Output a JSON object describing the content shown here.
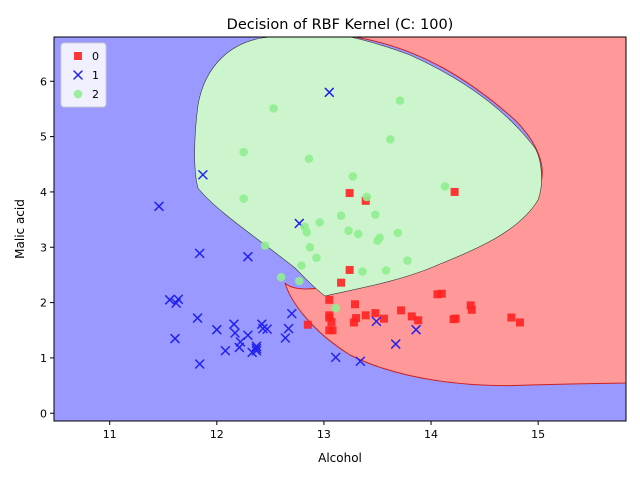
{
  "chart_data": {
    "type": "scatter",
    "title": "Decision of RBF Kernel (C: 100)",
    "xlabel": "Alcohol",
    "ylabel": "Malic acid",
    "xlim": [
      10.48,
      15.82
    ],
    "ylim": [
      -0.14,
      6.8
    ],
    "xticks": [
      11,
      12,
      13,
      14,
      15
    ],
    "yticks": [
      0,
      1,
      2,
      3,
      4,
      5,
      6
    ],
    "grid": false,
    "legend_position": "top-left",
    "regions": [
      {
        "class": "0",
        "color": "#ff9999"
      },
      {
        "class": "1",
        "color": "#9999ff"
      },
      {
        "class": "2",
        "color": "#cdf5cd"
      }
    ],
    "series": [
      {
        "name": "0",
        "marker": "square",
        "color": "#ff2222",
        "points": [
          [
            13.24,
            3.98
          ],
          [
            13.39,
            3.84
          ],
          [
            14.22,
            4.0
          ],
          [
            13.24,
            2.59
          ],
          [
            13.16,
            2.36
          ],
          [
            13.05,
            2.05
          ],
          [
            12.85,
            1.6
          ],
          [
            13.05,
            1.77
          ],
          [
            13.05,
            1.73
          ],
          [
            13.07,
            1.65
          ],
          [
            13.05,
            1.5
          ],
          [
            13.08,
            1.5
          ],
          [
            13.28,
            1.64
          ],
          [
            13.29,
            1.97
          ],
          [
            13.3,
            1.72
          ],
          [
            13.39,
            1.77
          ],
          [
            13.48,
            1.81
          ],
          [
            13.56,
            1.71
          ],
          [
            13.72,
            1.86
          ],
          [
            13.82,
            1.75
          ],
          [
            13.88,
            1.68
          ],
          [
            14.06,
            2.15
          ],
          [
            14.1,
            2.16
          ],
          [
            14.21,
            1.7
          ],
          [
            14.23,
            1.71
          ],
          [
            14.37,
            1.95
          ],
          [
            14.38,
            1.87
          ],
          [
            14.75,
            1.73
          ],
          [
            14.83,
            1.64
          ]
        ]
      },
      {
        "name": "1",
        "marker": "x",
        "color": "#2222ee",
        "points": [
          [
            11.46,
            3.74
          ],
          [
            11.56,
            2.05
          ],
          [
            11.61,
            1.35
          ],
          [
            11.62,
            1.99
          ],
          [
            11.64,
            2.06
          ],
          [
            11.82,
            1.72
          ],
          [
            11.84,
            0.89
          ],
          [
            11.84,
            2.89
          ],
          [
            11.87,
            4.31
          ],
          [
            12.0,
            1.51
          ],
          [
            12.08,
            1.13
          ],
          [
            12.16,
            1.61
          ],
          [
            12.17,
            1.45
          ],
          [
            12.21,
            1.19
          ],
          [
            12.22,
            1.29
          ],
          [
            12.29,
            1.41
          ],
          [
            12.29,
            2.83
          ],
          [
            12.33,
            1.1
          ],
          [
            12.37,
            1.13
          ],
          [
            12.37,
            1.17
          ],
          [
            12.37,
            1.21
          ],
          [
            12.42,
            1.61
          ],
          [
            12.43,
            1.53
          ],
          [
            12.47,
            1.52
          ],
          [
            12.64,
            1.36
          ],
          [
            12.67,
            1.53
          ],
          [
            12.7,
            1.8
          ],
          [
            12.77,
            3.43
          ],
          [
            13.05,
            5.8
          ],
          [
            13.11,
            1.01
          ],
          [
            13.34,
            0.94
          ],
          [
            13.49,
            1.66
          ],
          [
            13.67,
            1.25
          ],
          [
            13.86,
            1.51
          ]
        ]
      },
      {
        "name": "2",
        "marker": "circle",
        "color": "#90ee90",
        "points": [
          [
            12.25,
            4.72
          ],
          [
            12.25,
            3.88
          ],
          [
            12.45,
            3.03
          ],
          [
            12.53,
            5.51
          ],
          [
            12.6,
            2.46
          ],
          [
            12.77,
            2.39
          ],
          [
            12.79,
            2.67
          ],
          [
            12.82,
            3.37
          ],
          [
            12.84,
            3.27
          ],
          [
            12.86,
            4.6
          ],
          [
            12.87,
            3.0
          ],
          [
            12.93,
            2.81
          ],
          [
            12.96,
            3.45
          ],
          [
            13.11,
            1.9
          ],
          [
            13.16,
            3.57
          ],
          [
            13.23,
            3.3
          ],
          [
            13.27,
            4.28
          ],
          [
            13.32,
            3.24
          ],
          [
            13.36,
            2.56
          ],
          [
            13.4,
            3.91
          ],
          [
            13.48,
            3.59
          ],
          [
            13.5,
            3.12
          ],
          [
            13.52,
            3.17
          ],
          [
            13.58,
            2.58
          ],
          [
            13.62,
            4.95
          ],
          [
            13.69,
            3.26
          ],
          [
            13.71,
            5.65
          ],
          [
            13.78,
            2.76
          ],
          [
            14.13,
            4.1
          ]
        ]
      }
    ]
  }
}
